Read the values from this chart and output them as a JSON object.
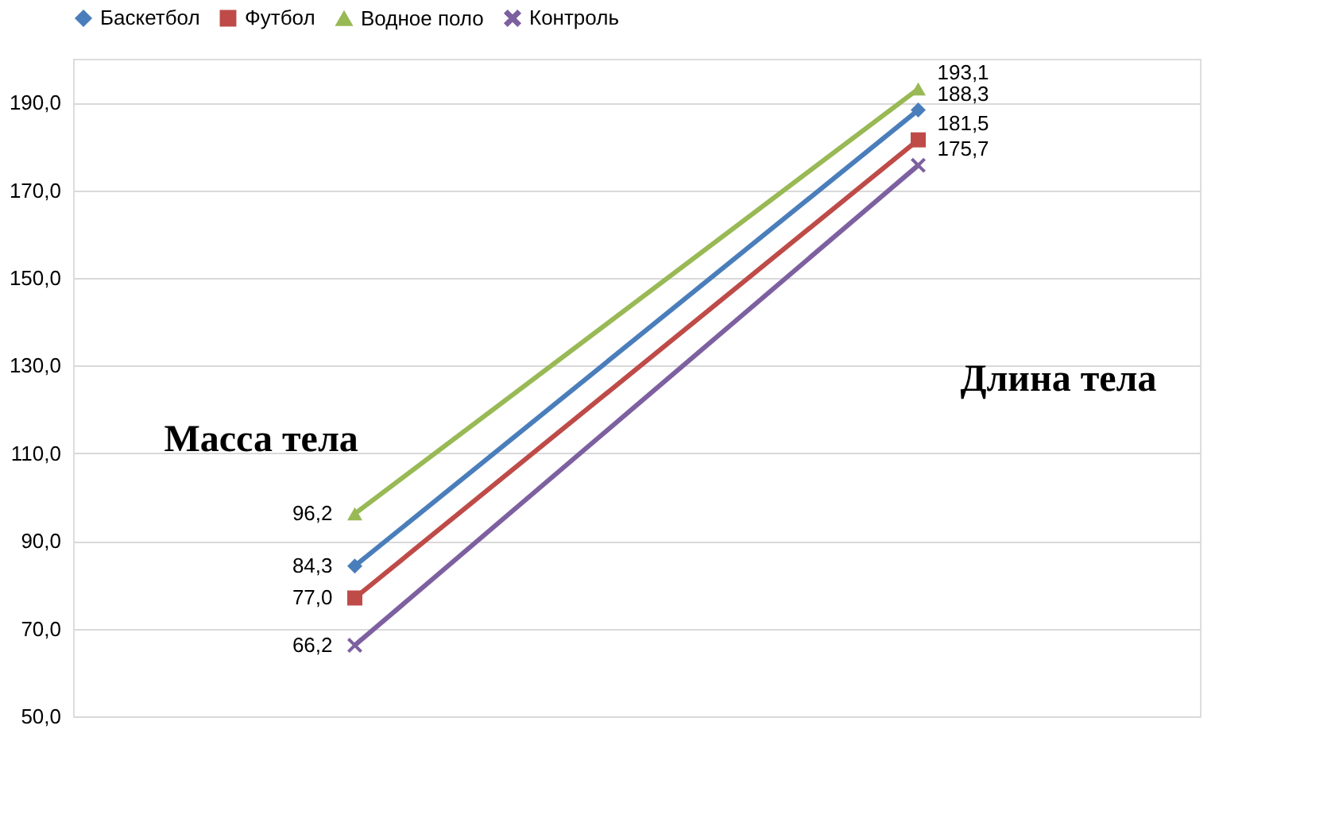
{
  "chart_data": {
    "type": "line",
    "categories": [
      null,
      null
    ],
    "series": [
      {
        "name": "Баскетбол",
        "color": "#4a7ebb",
        "marker": "diamond",
        "values": [
          84.3,
          188.3
        ],
        "value_labels": [
          "84,3",
          "188,3"
        ]
      },
      {
        "name": "Футбол",
        "color": "#be4b48",
        "marker": "square",
        "values": [
          77.0,
          181.5
        ],
        "value_labels": [
          "77,0",
          "181,5"
        ]
      },
      {
        "name": "Водное поло",
        "color": "#98b954",
        "marker": "triangle",
        "values": [
          96.2,
          193.1
        ],
        "value_labels": [
          "96,2",
          "193,1"
        ]
      },
      {
        "name": "Контроль",
        "color": "#7d60a0",
        "marker": "cross",
        "values": [
          66.2,
          175.7
        ],
        "value_labels": [
          "66,2",
          "175,7"
        ]
      }
    ],
    "annotations": [
      "Масса тела",
      "Длина тела"
    ],
    "ylim": [
      50,
      200
    ],
    "yticks": [
      {
        "value": 50,
        "label": "50,0"
      },
      {
        "value": 70,
        "label": "70,0"
      },
      {
        "value": 90,
        "label": "90,0"
      },
      {
        "value": 110,
        "label": "110,0"
      },
      {
        "value": 130,
        "label": "130,0"
      },
      {
        "value": 150,
        "label": "150,0"
      },
      {
        "value": 170,
        "label": "170,0"
      },
      {
        "value": 190,
        "label": "190,0"
      }
    ],
    "grid": "y",
    "legend": "top",
    "line_style": "solid"
  }
}
